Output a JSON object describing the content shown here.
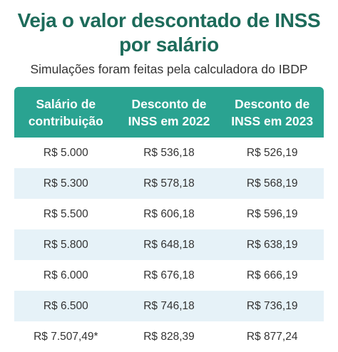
{
  "title": {
    "line1": "Veja o valor descontado de INSS",
    "line2": "por salário"
  },
  "subtitle": "Simulações foram feitas pela calculadora do IBDP",
  "table": {
    "headers": [
      [
        "Salário de",
        "contribuição"
      ],
      [
        "Desconto de",
        "INSS em 2022"
      ],
      [
        "Desconto de",
        "INSS em 2023"
      ]
    ],
    "rows": [
      [
        "R$ 5.000",
        "R$ 536,18",
        "R$ 526,19"
      ],
      [
        "R$ 5.300",
        "R$ 578,18",
        "R$ 568,19"
      ],
      [
        "R$ 5.500",
        "R$ 606,18",
        "R$ 596,19"
      ],
      [
        "R$ 5.800",
        "R$ 648,18",
        "R$ 638,19"
      ],
      [
        "R$ 6.000",
        "R$ 676,18",
        "R$ 666,19"
      ],
      [
        "R$ 6.500",
        "R$ 746,18",
        "R$ 736,19"
      ],
      [
        "R$ 7.507,49*",
        "R$ 828,39",
        "R$ 877,24"
      ]
    ]
  },
  "colors": {
    "title": "#1d6b5a",
    "header_bg": "#2aa391",
    "stripe_bg": "#e6f2f8"
  }
}
